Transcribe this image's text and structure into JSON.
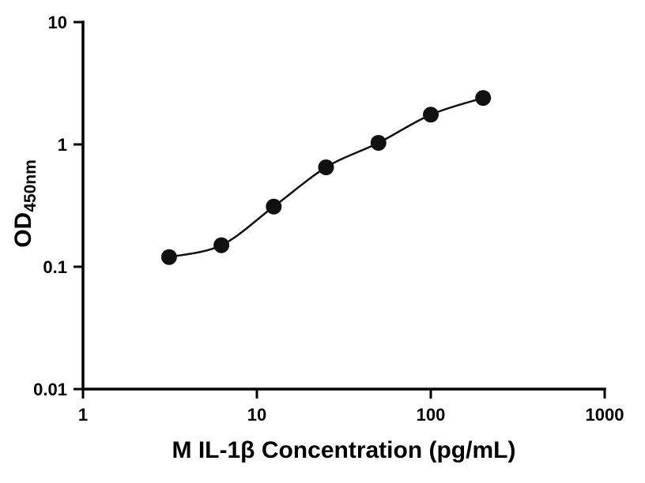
{
  "chart_data": {
    "type": "scatter",
    "title": "",
    "xlabel": "M IL-1β Concentration (pg/mL)",
    "ylabel_main": "OD",
    "ylabel_sub": "450nm",
    "x_scale": "log",
    "y_scale": "log",
    "xlim": [
      1,
      1000
    ],
    "ylim": [
      0.01,
      10
    ],
    "x": [
      3.125,
      6.25,
      12.5,
      25,
      50,
      100,
      200
    ],
    "y": [
      0.12,
      0.15,
      0.31,
      0.65,
      1.03,
      1.75,
      2.4
    ],
    "x_ticks": [
      {
        "value": 1,
        "label": "1"
      },
      {
        "value": 10,
        "label": "10"
      },
      {
        "value": 100,
        "label": "100"
      },
      {
        "value": 1000,
        "label": "1000"
      }
    ],
    "y_ticks": [
      {
        "value": 0.01,
        "label": "0.01"
      },
      {
        "value": 0.1,
        "label": "0.1"
      },
      {
        "value": 1,
        "label": "1"
      },
      {
        "value": 10,
        "label": "10"
      }
    ],
    "grid": false,
    "legend": "none",
    "axis_color": "#000000",
    "marker_color": "#111111",
    "line_color": "#111111"
  }
}
